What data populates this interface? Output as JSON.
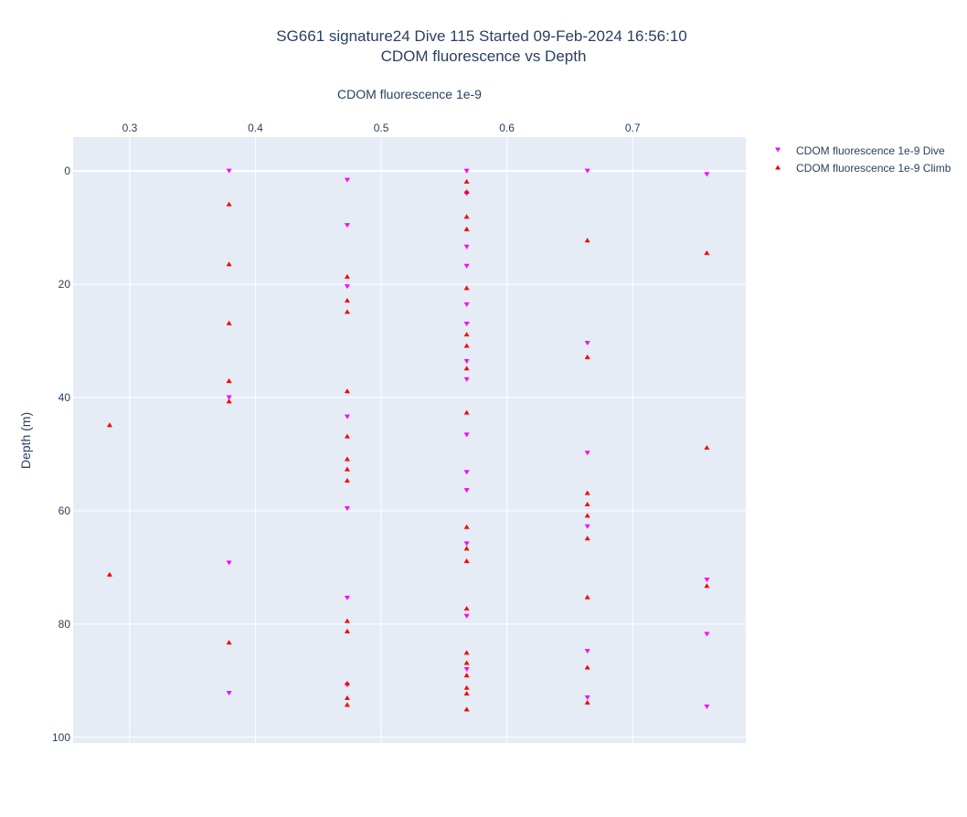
{
  "chart_data": {
    "type": "scatter",
    "title": "SG661 signature24 Dive 115 Started 09-Feb-2024 16:56:10",
    "subtitle": "CDOM fluorescence vs Depth",
    "xlabel": "CDOM fluorescence 1e-9",
    "ylabel": "Depth (m)",
    "x_axis_side": "top",
    "y_reversed": true,
    "xlim": [
      0.255,
      0.79
    ],
    "ylim": [
      -6,
      101
    ],
    "x_ticks": [
      0.3,
      0.4,
      0.5,
      0.6,
      0.7
    ],
    "x_tick_labels": [
      "0.3",
      "0.4",
      "0.5",
      "0.6",
      "0.7"
    ],
    "y_ticks": [
      0,
      20,
      40,
      60,
      80,
      100
    ],
    "y_tick_labels": [
      "0",
      "20",
      "40",
      "60",
      "80",
      "100"
    ],
    "grid": true,
    "legend_position": "top-right",
    "colors": {
      "plot_bg": "#e5ecf6",
      "grid": "#ffffff",
      "text": "#2a3f5f",
      "dive": "#ff00ff",
      "climb": "#ff0000"
    },
    "series": [
      {
        "name": "CDOM fluorescence 1e-9 Dive",
        "marker": "triangle-down",
        "color": "#ff00ff",
        "points": [
          {
            "x": 0.379,
            "y": 0
          },
          {
            "x": 0.379,
            "y": 40
          },
          {
            "x": 0.379,
            "y": 69.2
          },
          {
            "x": 0.379,
            "y": 92.2
          },
          {
            "x": 0.473,
            "y": 1.6
          },
          {
            "x": 0.473,
            "y": 9.6
          },
          {
            "x": 0.473,
            "y": 20.4
          },
          {
            "x": 0.473,
            "y": 43.4
          },
          {
            "x": 0.473,
            "y": 59.6
          },
          {
            "x": 0.473,
            "y": 75.4
          },
          {
            "x": 0.473,
            "y": 90.8
          },
          {
            "x": 0.568,
            "y": 0
          },
          {
            "x": 0.568,
            "y": 4
          },
          {
            "x": 0.568,
            "y": 13.4
          },
          {
            "x": 0.568,
            "y": 16.8
          },
          {
            "x": 0.568,
            "y": 23.6
          },
          {
            "x": 0.568,
            "y": 27
          },
          {
            "x": 0.568,
            "y": 33.6
          },
          {
            "x": 0.568,
            "y": 36.8
          },
          {
            "x": 0.568,
            "y": 46.6
          },
          {
            "x": 0.568,
            "y": 53.2
          },
          {
            "x": 0.568,
            "y": 56.4
          },
          {
            "x": 0.568,
            "y": 65.8
          },
          {
            "x": 0.568,
            "y": 78.6
          },
          {
            "x": 0.568,
            "y": 88
          },
          {
            "x": 0.664,
            "y": 0
          },
          {
            "x": 0.664,
            "y": 30.4
          },
          {
            "x": 0.664,
            "y": 49.8
          },
          {
            "x": 0.664,
            "y": 62.8
          },
          {
            "x": 0.664,
            "y": 84.8
          },
          {
            "x": 0.664,
            "y": 93
          },
          {
            "x": 0.759,
            "y": 0.6
          },
          {
            "x": 0.759,
            "y": 72.2
          },
          {
            "x": 0.759,
            "y": 81.8
          },
          {
            "x": 0.759,
            "y": 94.6
          }
        ]
      },
      {
        "name": "CDOM fluorescence 1e-9 Climb",
        "marker": "triangle-up",
        "color": "#ff0000",
        "points": [
          {
            "x": 0.284,
            "y": 44.8
          },
          {
            "x": 0.284,
            "y": 71.2
          },
          {
            "x": 0.379,
            "y": 5.8
          },
          {
            "x": 0.379,
            "y": 16.4
          },
          {
            "x": 0.379,
            "y": 26.8
          },
          {
            "x": 0.379,
            "y": 37
          },
          {
            "x": 0.379,
            "y": 40.6
          },
          {
            "x": 0.379,
            "y": 83.2
          },
          {
            "x": 0.473,
            "y": 18.6
          },
          {
            "x": 0.473,
            "y": 22.8
          },
          {
            "x": 0.473,
            "y": 24.8
          },
          {
            "x": 0.473,
            "y": 38.8
          },
          {
            "x": 0.473,
            "y": 46.8
          },
          {
            "x": 0.473,
            "y": 50.8
          },
          {
            "x": 0.473,
            "y": 52.6
          },
          {
            "x": 0.473,
            "y": 54.6
          },
          {
            "x": 0.473,
            "y": 79.4
          },
          {
            "x": 0.473,
            "y": 81.2
          },
          {
            "x": 0.473,
            "y": 90.4
          },
          {
            "x": 0.473,
            "y": 93
          },
          {
            "x": 0.473,
            "y": 94.2
          },
          {
            "x": 0.568,
            "y": 1.8
          },
          {
            "x": 0.568,
            "y": 3.6
          },
          {
            "x": 0.568,
            "y": 8
          },
          {
            "x": 0.568,
            "y": 10.2
          },
          {
            "x": 0.568,
            "y": 20.6
          },
          {
            "x": 0.568,
            "y": 28.8
          },
          {
            "x": 0.568,
            "y": 30.8
          },
          {
            "x": 0.568,
            "y": 34.8
          },
          {
            "x": 0.568,
            "y": 42.6
          },
          {
            "x": 0.568,
            "y": 62.8
          },
          {
            "x": 0.568,
            "y": 66.6
          },
          {
            "x": 0.568,
            "y": 68.8
          },
          {
            "x": 0.568,
            "y": 77.2
          },
          {
            "x": 0.568,
            "y": 85
          },
          {
            "x": 0.568,
            "y": 86.8
          },
          {
            "x": 0.568,
            "y": 89
          },
          {
            "x": 0.568,
            "y": 91.2
          },
          {
            "x": 0.568,
            "y": 92.2
          },
          {
            "x": 0.568,
            "y": 95
          },
          {
            "x": 0.664,
            "y": 12.2
          },
          {
            "x": 0.664,
            "y": 32.8
          },
          {
            "x": 0.664,
            "y": 56.8
          },
          {
            "x": 0.664,
            "y": 58.8
          },
          {
            "x": 0.664,
            "y": 60.8
          },
          {
            "x": 0.664,
            "y": 64.8
          },
          {
            "x": 0.664,
            "y": 75.2
          },
          {
            "x": 0.664,
            "y": 87.6
          },
          {
            "x": 0.664,
            "y": 93.8
          },
          {
            "x": 0.759,
            "y": 14.4
          },
          {
            "x": 0.759,
            "y": 48.8
          },
          {
            "x": 0.759,
            "y": 73.2
          }
        ]
      }
    ]
  }
}
